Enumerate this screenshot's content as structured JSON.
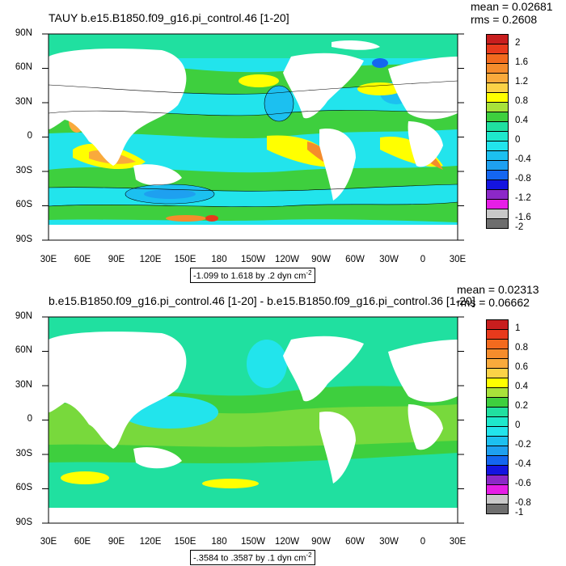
{
  "panel1": {
    "title": "TAUY b.e15.B1850.f09_g16.pi_control.46 [1-20]",
    "mean_label": "mean = 0.02681",
    "rms_label": "rms = 0.2608",
    "range_text": "-1.099 to 1.618 by .2 dyn cm",
    "range_exp": "-2",
    "y_ticks": [
      "90N",
      "60N",
      "30N",
      "0",
      "30S",
      "60S",
      "90S"
    ],
    "x_ticks": [
      "30E",
      "60E",
      "90E",
      "120E",
      "150E",
      "180",
      "150W",
      "120W",
      "90W",
      "60W",
      "30W",
      "0",
      "30E"
    ],
    "colorbar": {
      "levels": [
        "2",
        "1.6",
        "1.2",
        "0.8",
        "0.4",
        "0",
        "-0.4",
        "-0.8",
        "-1.2",
        "-1.6",
        "-2"
      ],
      "colors": [
        "#c81e1e",
        "#e83a1c",
        "#f26a1e",
        "#f58c2c",
        "#f9aa3c",
        "#fbd247",
        "#ffff00",
        "#a8e23a",
        "#3ecf3e",
        "#20e0a0",
        "#1ee8cc",
        "#22e4ec",
        "#1cc0f0",
        "#1ea0f0",
        "#1466f0",
        "#1414e0",
        "#8c28c8",
        "#e61ee6",
        "#c8c8c8",
        "#6e6e6e"
      ]
    }
  },
  "panel2": {
    "title": "b.e15.B1850.f09_g16.pi_control.46 [1-20] - b.e15.B1850.f09_g16.pi_control.36 [1-20]",
    "mean_label": "mean = 0.02313",
    "rms_label": "rms = 0.06662",
    "range_text": "-.3584 to .3587 by .1 dyn cm",
    "range_exp": "-2",
    "y_ticks": [
      "90N",
      "60N",
      "30N",
      "0",
      "30S",
      "60S",
      "90S"
    ],
    "x_ticks": [
      "30E",
      "60E",
      "90E",
      "120E",
      "150E",
      "180",
      "150W",
      "120W",
      "90W",
      "60W",
      "30W",
      "0",
      "30E"
    ],
    "colorbar": {
      "levels": [
        "1",
        "0.8",
        "0.6",
        "0.4",
        "0.2",
        "0",
        "-0.2",
        "-0.4",
        "-0.6",
        "-0.8",
        "-1"
      ],
      "colors": [
        "#c81e1e",
        "#e83a1c",
        "#f26a1e",
        "#f58c2c",
        "#f9aa3c",
        "#fbd247",
        "#ffff00",
        "#a8e23a",
        "#3ecf3e",
        "#20e0a0",
        "#1ee8cc",
        "#22e4ec",
        "#1cc0f0",
        "#1ea0f0",
        "#1466f0",
        "#1414e0",
        "#8c28c8",
        "#e61ee6",
        "#c8c8c8",
        "#6e6e6e"
      ]
    }
  }
}
